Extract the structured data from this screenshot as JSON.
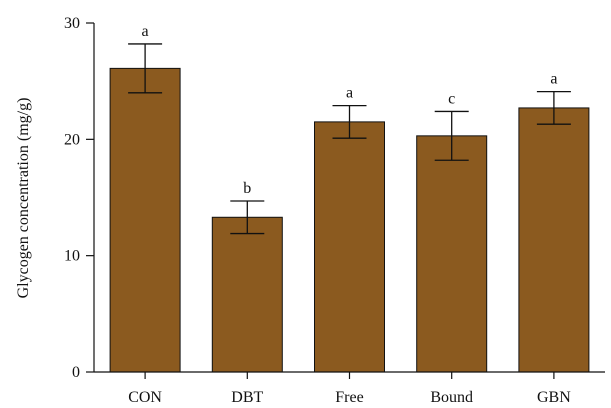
{
  "chart_data": {
    "type": "bar",
    "title": "",
    "xlabel": "",
    "ylabel": "Glycogen concentration (mg/g)",
    "ylim": [
      0,
      30
    ],
    "yticks": [
      0,
      10,
      20,
      30
    ],
    "categories": [
      "CON",
      "DBT",
      "Free",
      "Bound",
      "GBN"
    ],
    "values": [
      26.1,
      13.3,
      21.5,
      20.3,
      22.7
    ],
    "errors": [
      2.1,
      1.4,
      1.4,
      2.1,
      1.4
    ],
    "significance": [
      "a",
      "b",
      "a",
      "c",
      "a"
    ],
    "bar_color": "#8B5A1F",
    "grid": false,
    "legend": "none"
  }
}
